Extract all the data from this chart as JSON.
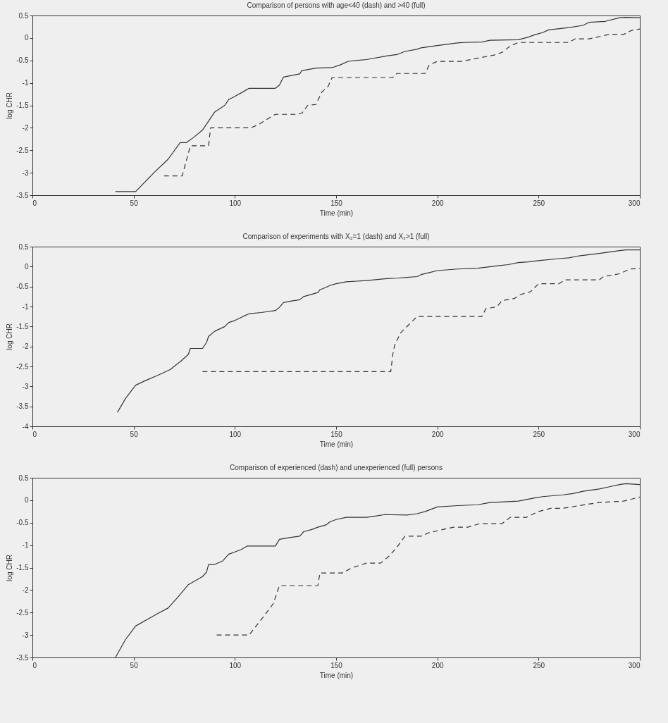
{
  "chart_data": [
    {
      "type": "line",
      "title": "Comparison of persons with age<40 (dash) and >40 (full)",
      "xlabel": "Time (min)",
      "ylabel": "log CHR",
      "xlim": [
        0,
        300
      ],
      "xticks": [
        0,
        50,
        100,
        150,
        200,
        250,
        300
      ],
      "ylim": [
        -3.5,
        0.5
      ],
      "yticks": [
        -3.5,
        -3,
        -2.5,
        -2,
        -1.5,
        -1,
        -0.5,
        0,
        0.5
      ],
      "grid": false,
      "series": [
        {
          "color": "#333333",
          "line_style": "solid",
          "x": [
            41,
            51,
            60,
            67,
            73,
            76,
            80,
            84,
            87,
            90,
            95,
            97,
            100,
            104,
            107,
            120,
            122,
            124,
            132,
            133,
            140,
            148,
            152,
            156,
            165,
            175,
            180,
            184,
            190,
            192,
            200,
            210,
            213,
            222,
            226,
            240,
            245,
            248,
            252,
            255,
            265,
            272,
            275,
            283,
            290,
            293,
            300
          ],
          "values": [
            -3.42,
            -3.42,
            -3.0,
            -2.7,
            -2.33,
            -2.33,
            -2.2,
            -2.05,
            -1.85,
            -1.65,
            -1.5,
            -1.37,
            -1.3,
            -1.2,
            -1.12,
            -1.12,
            -1.05,
            -0.87,
            -0.8,
            -0.73,
            -0.67,
            -0.66,
            -0.6,
            -0.52,
            -0.48,
            -0.4,
            -0.37,
            -0.3,
            -0.25,
            -0.22,
            -0.17,
            -0.11,
            -0.1,
            -0.09,
            -0.05,
            -0.04,
            0.02,
            0.07,
            0.12,
            0.18,
            0.23,
            0.28,
            0.35,
            0.37,
            0.45,
            0.46,
            0.45
          ]
        },
        {
          "color": "#333333",
          "line_style": "dashed",
          "x": [
            65,
            74,
            75,
            78,
            87,
            88,
            108,
            112,
            118,
            120,
            130,
            133,
            136,
            140,
            143,
            146,
            148,
            178,
            180,
            194,
            196,
            200,
            212,
            220,
            228,
            232,
            236,
            240,
            265,
            268,
            275,
            285,
            292,
            296,
            300
          ],
          "values": [
            -3.07,
            -3.07,
            -2.9,
            -2.4,
            -2.4,
            -2.0,
            -2.0,
            -1.92,
            -1.75,
            -1.7,
            -1.7,
            -1.68,
            -1.5,
            -1.48,
            -1.2,
            -1.08,
            -0.88,
            -0.88,
            -0.79,
            -0.79,
            -0.6,
            -0.52,
            -0.52,
            -0.45,
            -0.38,
            -0.32,
            -0.18,
            -0.1,
            -0.1,
            -0.02,
            -0.02,
            0.08,
            0.08,
            0.17,
            0.2
          ]
        }
      ]
    },
    {
      "type": "line",
      "title": "Comparison of experiments with X₂=1 (dash) and X₂>1 (full)",
      "xlabel": "Time (min)",
      "ylabel": "log CHR",
      "xlim": [
        0,
        300
      ],
      "xticks": [
        0,
        50,
        100,
        150,
        200,
        250,
        300
      ],
      "ylim": [
        -4,
        0.5
      ],
      "yticks": [
        -4,
        -3.5,
        -3,
        -2.5,
        -2,
        -1.5,
        -1,
        -0.5,
        0,
        0.5
      ],
      "grid": false,
      "series": [
        {
          "color": "#333333",
          "line_style": "solid",
          "x": [
            42,
            46,
            51,
            56,
            62,
            68,
            73,
            77,
            78,
            84,
            86,
            87,
            90,
            95,
            97,
            100,
            104,
            107,
            113,
            120,
            122,
            124,
            127,
            132,
            134,
            141,
            142,
            145,
            147,
            150,
            155,
            165,
            175,
            180,
            185,
            190,
            192,
            196,
            200,
            210,
            220,
            230,
            235,
            240,
            245,
            250,
            260,
            265,
            270,
            280,
            290,
            293,
            300
          ],
          "values": [
            -3.65,
            -3.3,
            -2.97,
            -2.85,
            -2.72,
            -2.58,
            -2.38,
            -2.2,
            -2.05,
            -2.05,
            -1.9,
            -1.75,
            -1.62,
            -1.5,
            -1.4,
            -1.35,
            -1.25,
            -1.18,
            -1.15,
            -1.1,
            -1.02,
            -0.9,
            -0.87,
            -0.83,
            -0.75,
            -0.65,
            -0.58,
            -0.52,
            -0.47,
            -0.43,
            -0.38,
            -0.35,
            -0.3,
            -0.29,
            -0.27,
            -0.25,
            -0.2,
            -0.15,
            -0.1,
            -0.06,
            -0.04,
            0.02,
            0.05,
            0.1,
            0.12,
            0.15,
            0.2,
            0.22,
            0.27,
            0.33,
            0.4,
            0.42,
            0.42
          ]
        },
        {
          "color": "#333333",
          "line_style": "dashed",
          "x": [
            84,
            177,
            178,
            179,
            182,
            186,
            190,
            222,
            224,
            228,
            230,
            232,
            238,
            241,
            246,
            250,
            260,
            263,
            280,
            282,
            290,
            295,
            300
          ],
          "values": [
            -2.63,
            -2.63,
            -2.2,
            -1.95,
            -1.65,
            -1.45,
            -1.25,
            -1.25,
            -1.05,
            -1.02,
            -0.97,
            -0.85,
            -0.8,
            -0.7,
            -0.63,
            -0.43,
            -0.43,
            -0.33,
            -0.33,
            -0.25,
            -0.18,
            -0.06,
            -0.05
          ]
        }
      ]
    },
    {
      "type": "line",
      "title": "Comparison of experienced (dash) and unexperienced (full) persons",
      "xlabel": "Time (min)",
      "ylabel": "log CHR",
      "xlim": [
        0,
        300
      ],
      "xticks": [
        0,
        50,
        100,
        150,
        200,
        250,
        300
      ],
      "ylim": [
        -3.5,
        0.5
      ],
      "yticks": [
        -3.5,
        -3,
        -2.5,
        -2,
        -1.5,
        -1,
        -0.5,
        0,
        0.5
      ],
      "grid": false,
      "series": [
        {
          "color": "#333333",
          "line_style": "solid",
          "x": [
            41,
            46,
            51,
            58,
            62,
            67,
            72,
            77,
            84,
            86,
            87,
            90,
            94,
            97,
            100,
            103,
            106,
            120,
            122,
            127,
            132,
            134,
            138,
            141,
            145,
            147,
            150,
            155,
            165,
            170,
            174,
            185,
            190,
            194,
            200,
            210,
            220,
            226,
            240,
            248,
            252,
            262,
            267,
            272,
            280,
            285,
            290,
            293,
            300
          ],
          "values": [
            -3.5,
            -3.1,
            -2.8,
            -2.62,
            -2.52,
            -2.4,
            -2.15,
            -1.88,
            -1.7,
            -1.6,
            -1.43,
            -1.43,
            -1.35,
            -1.2,
            -1.15,
            -1.1,
            -1.02,
            -1.02,
            -0.87,
            -0.83,
            -0.8,
            -0.7,
            -0.65,
            -0.6,
            -0.55,
            -0.48,
            -0.43,
            -0.38,
            -0.38,
            -0.35,
            -0.32,
            -0.33,
            -0.3,
            -0.25,
            -0.15,
            -0.12,
            -0.1,
            -0.05,
            -0.02,
            0.05,
            0.08,
            0.12,
            0.15,
            0.2,
            0.25,
            0.3,
            0.35,
            0.37,
            0.35
          ]
        },
        {
          "color": "#333333",
          "line_style": "dashed",
          "x": [
            91,
            107,
            114,
            119,
            122,
            141,
            142,
            153,
            158,
            165,
            172,
            176,
            180,
            184,
            192,
            196,
            200,
            208,
            215,
            221,
            232,
            236,
            244,
            250,
            256,
            262,
            270,
            280,
            292,
            300
          ],
          "values": [
            -3.0,
            -3.0,
            -2.6,
            -2.3,
            -1.9,
            -1.9,
            -1.62,
            -1.62,
            -1.5,
            -1.4,
            -1.4,
            -1.25,
            -1.05,
            -0.8,
            -0.8,
            -0.72,
            -0.68,
            -0.6,
            -0.6,
            -0.52,
            -0.52,
            -0.38,
            -0.38,
            -0.25,
            -0.18,
            -0.18,
            -0.12,
            -0.05,
            -0.02,
            0.07
          ]
        }
      ]
    }
  ]
}
